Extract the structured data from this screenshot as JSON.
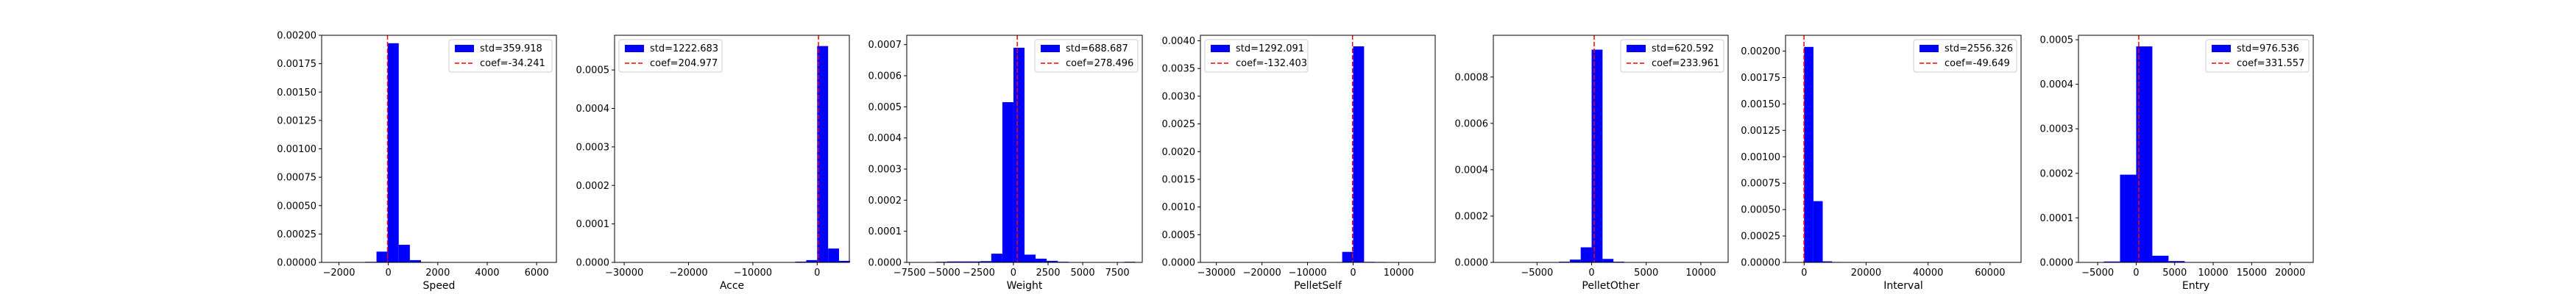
{
  "colors": {
    "bar": "#0000ff",
    "coef_line": "#ff0000",
    "axis": "#000000",
    "legend_border": "#cccccc"
  },
  "chart_data": [
    {
      "type": "bar",
      "xlabel": "Speed",
      "xlim": [
        -2700,
        6800
      ],
      "ylim": [
        0,
        0.002
      ],
      "xticks": [
        -2000,
        0,
        2000,
        4000,
        6000
      ],
      "xtick_labels": [
        "−2000",
        "0",
        "2000",
        "4000",
        "6000"
      ],
      "yticks": [
        0,
        0.00025,
        0.0005,
        0.00075,
        0.001,
        0.00125,
        0.0015,
        0.00175,
        0.002
      ],
      "ytick_labels": [
        "0.00000",
        "0.00025",
        "0.00050",
        "0.00075",
        "0.00100",
        "0.00125",
        "0.00150",
        "0.00175",
        "0.00200"
      ],
      "bins": [
        [
          -930,
          -480,
          5e-06
        ],
        [
          -480,
          -30,
          9.5e-05
        ],
        [
          -30,
          420,
          0.00193
        ],
        [
          420,
          870,
          0.000155
        ],
        [
          870,
          1320,
          2e-05
        ],
        [
          1320,
          1770,
          4e-06
        ]
      ],
      "coef": -34.241,
      "legend": {
        "bar": "std=359.918",
        "line": "coef=-34.241",
        "loc": "upper right"
      }
    },
    {
      "type": "bar",
      "xlabel": "Acce",
      "xlim": [
        -31500,
        5000
      ],
      "ylim": [
        0,
        0.00059
      ],
      "xticks": [
        -30000,
        -20000,
        -10000,
        0
      ],
      "xtick_labels": [
        "−30000",
        "−20000",
        "−10000",
        "0"
      ],
      "yticks": [
        0,
        0.0001,
        0.0002,
        0.0003,
        0.0004,
        0.0005
      ],
      "ytick_labels": [
        "0.0000",
        "0.0001",
        "0.0002",
        "0.0003",
        "0.0004",
        "0.0005"
      ],
      "bins": [
        [
          -3400,
          -1700,
          2e-06
        ],
        [
          -1700,
          0,
          6e-06
        ],
        [
          0,
          1700,
          0.000562
        ],
        [
          1700,
          3400,
          3.6e-05
        ],
        [
          3400,
          5100,
          4e-06
        ]
      ],
      "coef": 204.977,
      "legend": {
        "bar": "std=1222.683",
        "line": "coef=204.977",
        "loc": "upper left"
      }
    },
    {
      "type": "bar",
      "xlabel": "Weight",
      "xlim": [
        -7700,
        9300
      ],
      "ylim": [
        0,
        0.00073
      ],
      "xticks": [
        -7500,
        -5000,
        -2500,
        0,
        2500,
        5000,
        7500
      ],
      "xtick_labels": [
        "−7500",
        "−5000",
        "−2500",
        "0",
        "2500",
        "5000",
        "7500"
      ],
      "yticks": [
        0,
        0.0001,
        0.0002,
        0.0003,
        0.0004,
        0.0005,
        0.0006,
        0.0007
      ],
      "ytick_labels": [
        "0.0000",
        "0.0001",
        "0.0002",
        "0.0003",
        "0.0004",
        "0.0005",
        "0.0006",
        "0.0007"
      ],
      "bins": [
        [
          -5600,
          -4800,
          2e-06
        ],
        [
          -4800,
          -4000,
          3e-06
        ],
        [
          -4000,
          -3200,
          3e-06
        ],
        [
          -3200,
          -2400,
          3e-06
        ],
        [
          -2400,
          -1600,
          4e-06
        ],
        [
          -1600,
          -800,
          2.8e-05
        ],
        [
          -800,
          0,
          0.000515
        ],
        [
          0,
          800,
          0.00069
        ],
        [
          800,
          1600,
          2.5e-05
        ],
        [
          1600,
          2400,
          1.2e-05
        ],
        [
          2400,
          3200,
          5e-06
        ],
        [
          3200,
          4000,
          2e-06
        ],
        [
          8000,
          8800,
          2e-06
        ]
      ],
      "coef": 278.496,
      "legend": {
        "bar": "std=688.687",
        "line": "coef=278.496",
        "loc": "upper right"
      }
    },
    {
      "type": "bar",
      "xlabel": "PelletSelf",
      "xlim": [
        -33500,
        18000
      ],
      "ylim": [
        0,
        0.0041
      ],
      "xticks": [
        -30000,
        -20000,
        -10000,
        0,
        10000
      ],
      "xtick_labels": [
        "−30000",
        "−20000",
        "−10000",
        "0",
        "10000"
      ],
      "yticks": [
        0,
        0.0005,
        0.001,
        0.0015,
        0.002,
        0.0025,
        0.003,
        0.0035,
        0.004
      ],
      "ytick_labels": [
        "0.0000",
        "0.0005",
        "0.0010",
        "0.0015",
        "0.0020",
        "0.0025",
        "0.0030",
        "0.0035",
        "0.0040"
      ],
      "bins": [
        [
          -2400,
          0,
          0.00019
        ],
        [
          0,
          2400,
          0.0039
        ],
        [
          2400,
          4800,
          1e-05
        ],
        [
          4800,
          7200,
          8e-06
        ]
      ],
      "coef": -132.403,
      "legend": {
        "bar": "std=1292.091",
        "line": "coef=-132.403",
        "loc": "upper left"
      }
    },
    {
      "type": "bar",
      "xlabel": "PelletOther",
      "xlim": [
        -9000,
        12500
      ],
      "ylim": [
        0,
        0.00098
      ],
      "xticks": [
        -5000,
        0,
        5000,
        10000
      ],
      "xtick_labels": [
        "−5000",
        "0",
        "5000",
        "10000"
      ],
      "yticks": [
        0,
        0.0002,
        0.0004,
        0.0006,
        0.0008
      ],
      "ytick_labels": [
        "0.0000",
        "0.0002",
        "0.0004",
        "0.0006",
        "0.0008"
      ],
      "bins": [
        [
          -3000,
          -2000,
          3e-06
        ],
        [
          -2000,
          -1000,
          1.2e-05
        ],
        [
          -1000,
          0,
          6.5e-05
        ],
        [
          0,
          1000,
          0.000918
        ],
        [
          1000,
          2000,
          1.5e-05
        ],
        [
          2000,
          3000,
          3e-06
        ]
      ],
      "coef": 233.961,
      "legend": {
        "bar": "std=620.592",
        "line": "coef=233.961",
        "loc": "upper right"
      }
    },
    {
      "type": "bar",
      "xlabel": "Interval",
      "xlim": [
        -6000,
        70000
      ],
      "ylim": [
        0,
        0.00215
      ],
      "xticks": [
        0,
        20000,
        40000,
        60000
      ],
      "xtick_labels": [
        "0",
        "20000",
        "40000",
        "60000"
      ],
      "yticks": [
        0,
        0.00025,
        0.0005,
        0.00075,
        0.001,
        0.00125,
        0.0015,
        0.00175,
        0.002
      ],
      "ytick_labels": [
        "0.00000",
        "0.00025",
        "0.00050",
        "0.00075",
        "0.00100",
        "0.00125",
        "0.00150",
        "0.00175",
        "0.00200"
      ],
      "bins": [
        [
          -3000,
          0,
          3e-06
        ],
        [
          0,
          3000,
          0.00204
        ],
        [
          3000,
          6000,
          0.00058
        ],
        [
          6000,
          9000,
          1e-05
        ],
        [
          9000,
          12000,
          4e-06
        ]
      ],
      "coef": -49.649,
      "legend": {
        "bar": "std=2556.326",
        "line": "coef=-49.649",
        "loc": "upper right"
      }
    },
    {
      "type": "bar",
      "xlabel": "Entry",
      "xlim": [
        -7500,
        23000
      ],
      "ylim": [
        0,
        0.00051
      ],
      "xticks": [
        -5000,
        0,
        5000,
        10000,
        15000,
        20000
      ],
      "xtick_labels": [
        "−5000",
        "0",
        "5000",
        "10000",
        "15000",
        "20000"
      ],
      "yticks": [
        0,
        0.0001,
        0.0002,
        0.0003,
        0.0004,
        0.0005
      ],
      "ytick_labels": [
        "0.0000",
        "0.0001",
        "0.0002",
        "0.0003",
        "0.0004",
        "0.0005"
      ],
      "bins": [
        [
          -4200,
          -2100,
          2e-06
        ],
        [
          -2100,
          0,
          0.000197
        ],
        [
          0,
          2100,
          0.000485
        ],
        [
          2100,
          4200,
          1.5e-05
        ],
        [
          4200,
          6300,
          3e-06
        ]
      ],
      "coef": 331.557,
      "legend": {
        "bar": "std=976.536",
        "line": "coef=331.557",
        "loc": "upper right"
      }
    }
  ]
}
